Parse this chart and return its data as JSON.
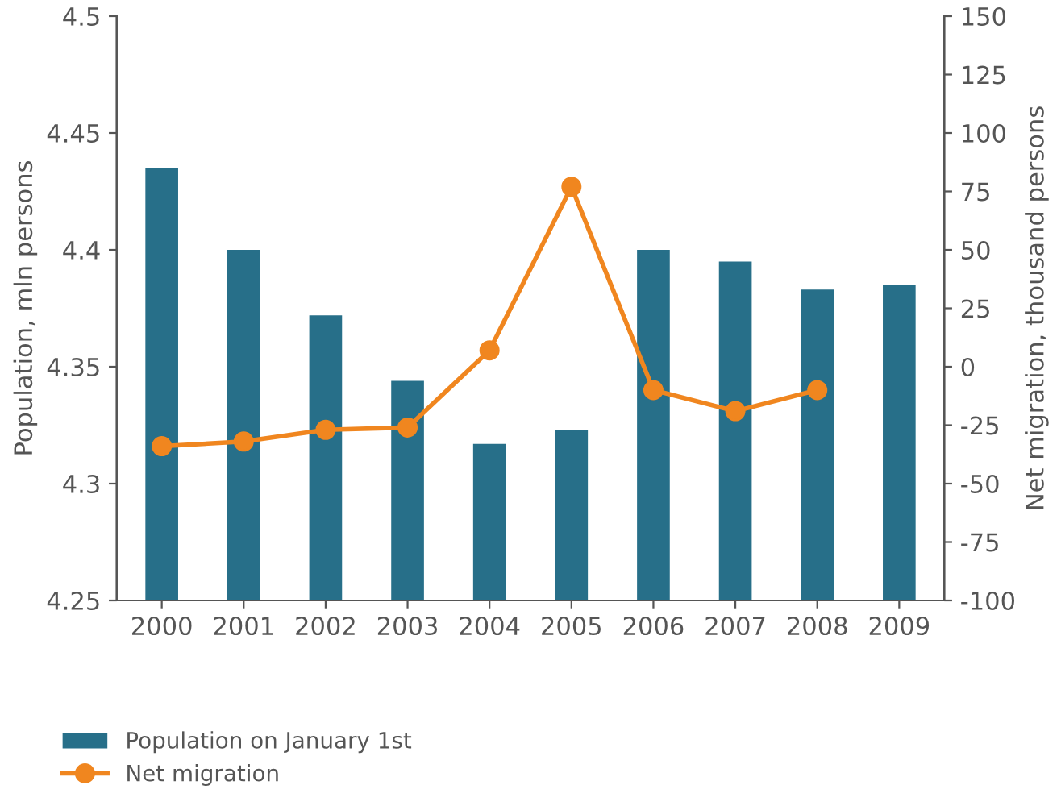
{
  "chart_data": {
    "type": "bar",
    "ylabel": "Population, mln persons",
    "y2label": "Net migration, thousand persons",
    "categories": [
      "2000",
      "2001",
      "2002",
      "2003",
      "2004",
      "2005",
      "2006",
      "2007",
      "2008",
      "2009"
    ],
    "series": [
      {
        "name": "Population on January 1st",
        "color": "#276f89",
        "values": [
          4.435,
          4.4,
          4.372,
          4.344,
          4.317,
          4.323,
          4.4,
          4.395,
          4.383,
          4.385
        ]
      },
      {
        "name": "Net migration",
        "type": "line",
        "axis": "y2",
        "color": "#f0861f",
        "marker": "circle",
        "values": [
          -34,
          -32,
          -27,
          -26,
          7,
          77,
          -10,
          -19,
          -10,
          null
        ]
      }
    ],
    "ylim": [
      4.25,
      4.5
    ],
    "yticks": [
      4.25,
      4.3,
      4.35,
      4.4,
      4.45,
      4.5
    ],
    "y2lim": [
      -100,
      150
    ],
    "y2ticks": [
      -100,
      -75,
      -50,
      -25,
      0,
      25,
      50,
      75,
      100,
      125,
      150
    ],
    "grid": false,
    "legend": "bottom left"
  }
}
